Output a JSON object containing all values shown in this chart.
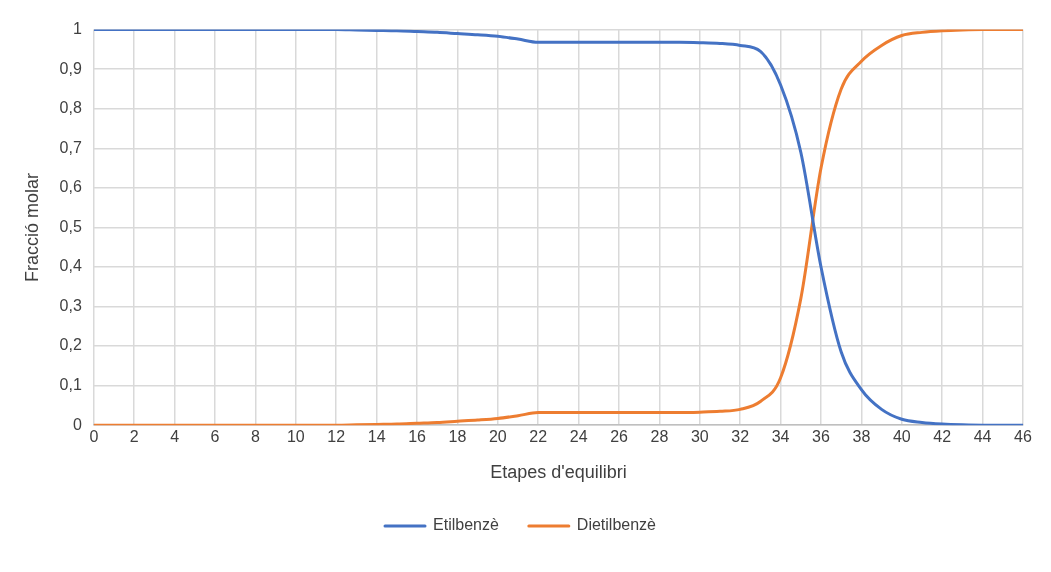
{
  "chart_data": {
    "type": "line",
    "xlabel": "Etapes d'equilibri",
    "ylabel": "Fracció molar",
    "x": [
      0,
      1,
      2,
      3,
      4,
      5,
      6,
      7,
      8,
      9,
      10,
      11,
      12,
      13,
      14,
      15,
      16,
      17,
      18,
      19,
      20,
      21,
      22,
      23,
      24,
      25,
      26,
      27,
      28,
      29,
      30,
      31,
      32,
      33,
      34,
      35,
      36,
      37,
      38,
      39,
      40,
      41,
      42,
      43,
      44,
      45,
      46
    ],
    "series": [
      {
        "name": "Etilbenzè",
        "color": "#4472c4",
        "values": [
          1,
          1,
          1,
          1,
          1,
          1,
          1,
          1,
          1,
          1,
          1,
          1,
          1,
          0.999,
          0.998,
          0.997,
          0.995,
          0.993,
          0.99,
          0.987,
          0.983,
          0.976,
          0.968,
          0.968,
          0.968,
          0.968,
          0.968,
          0.968,
          0.968,
          0.968,
          0.967,
          0.965,
          0.96,
          0.945,
          0.86,
          0.69,
          0.4,
          0.185,
          0.09,
          0.04,
          0.015,
          0.007,
          0.003,
          0.001,
          0,
          0,
          0
        ]
      },
      {
        "name": "Dietilbenzè",
        "color": "#ed7d31",
        "values": [
          0,
          0,
          0,
          0,
          0,
          0,
          0,
          0,
          0,
          0,
          0,
          0,
          0,
          0.001,
          0.002,
          0.003,
          0.005,
          0.007,
          0.01,
          0.013,
          0.017,
          0.024,
          0.032,
          0.032,
          0.032,
          0.032,
          0.032,
          0.032,
          0.032,
          0.032,
          0.033,
          0.035,
          0.04,
          0.06,
          0.12,
          0.32,
          0.65,
          0.85,
          0.92,
          0.96,
          0.985,
          0.993,
          0.997,
          0.999,
          1,
          1,
          1
        ]
      }
    ],
    "xlim": [
      0,
      46
    ],
    "xticks": [
      0,
      2,
      4,
      6,
      8,
      10,
      12,
      14,
      16,
      18,
      20,
      22,
      24,
      26,
      28,
      30,
      32,
      34,
      36,
      38,
      40,
      42,
      44,
      46
    ],
    "ylim": [
      0,
      1
    ],
    "yticks": [
      0,
      {
        "value": 0.1,
        "label": "0,1"
      },
      {
        "value": 0.2,
        "label": "0,2"
      },
      {
        "value": 0.3,
        "label": "0,3"
      },
      {
        "value": 0.4,
        "label": "0,4"
      },
      {
        "value": 0.5,
        "label": "0,5"
      },
      {
        "value": 0.6,
        "label": "0,6"
      },
      {
        "value": 0.7,
        "label": "0,7"
      },
      {
        "value": 0.8,
        "label": "0,8"
      },
      {
        "value": 0.9,
        "label": "0,9"
      },
      1
    ],
    "grid": true,
    "legend": "bottom",
    "marker": "none",
    "line_style": "solid"
  }
}
